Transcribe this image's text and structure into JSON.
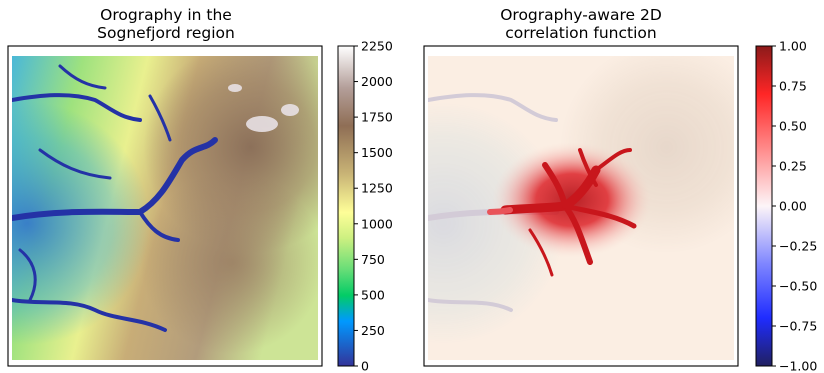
{
  "chart_data": [
    {
      "type": "heatmap",
      "title_lines": [
        "Orography in the",
        "Sognefjord region"
      ],
      "xlabel": "",
      "ylabel": "",
      "axis_ticks_visible": false,
      "colormap": "terrain",
      "colorbar": {
        "range": [
          0,
          2250
        ],
        "ticks": [
          0,
          250,
          500,
          750,
          1000,
          1250,
          1500,
          1750,
          2000,
          2250
        ],
        "tick_labels": [
          "0",
          "250",
          "500",
          "750",
          "1000",
          "1250",
          "1500",
          "1750",
          "2000",
          "2250"
        ],
        "levels": 28,
        "placement": "right"
      },
      "description_values": {
        "fjord_elevation": 0,
        "peak_elevation_approx": 2200,
        "high_terrain_location": "north-east",
        "low_terrain_location": "west"
      }
    },
    {
      "type": "heatmap",
      "title_lines": [
        "Orography-aware 2D",
        "correlation function"
      ],
      "xlabel": "",
      "ylabel": "",
      "axis_ticks_visible": false,
      "colormap": "seismic-like (blue-white-red), semi-transparent over orography",
      "colorbar": {
        "range": [
          -1.0,
          1.0
        ],
        "ticks": [
          -1.0,
          -0.75,
          -0.5,
          -0.25,
          0.0,
          0.25,
          0.5,
          0.75,
          1.0
        ],
        "tick_labels": [
          "−1.00",
          "−0.75",
          "−0.50",
          "−0.25",
          "0.00",
          "0.25",
          "0.50",
          "0.75",
          "1.00"
        ],
        "levels": 40,
        "placement": "right"
      },
      "description_values": {
        "peak_correlation": 1.0,
        "background_correlation_approx": 0.05,
        "peak_location": "center of the domain, following low-lying fjord valleys"
      }
    }
  ]
}
